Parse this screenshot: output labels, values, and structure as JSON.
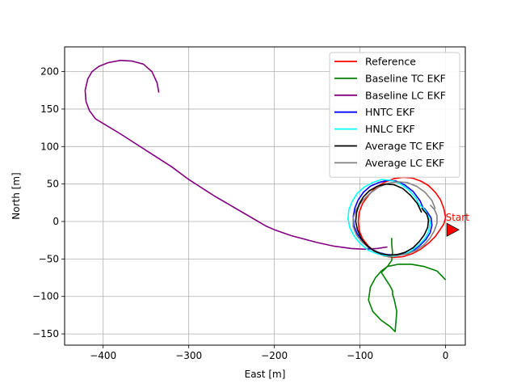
{
  "chart_data": {
    "type": "line",
    "title": "",
    "xlabel": "East [m]",
    "ylabel": "North [m]",
    "xlim": [
      -445,
      23
    ],
    "ylim": [
      -165,
      233
    ],
    "xticks": [
      -400,
      -300,
      -200,
      -100,
      0
    ],
    "yticks": [
      -150,
      -100,
      -50,
      0,
      50,
      100,
      150,
      200
    ],
    "xtick_labels": [
      "−400",
      "−300",
      "−200",
      "−100",
      "0"
    ],
    "ytick_labels": [
      "−150",
      "−100",
      "−50",
      "0",
      "50",
      "100",
      "150",
      "200"
    ],
    "grid": true,
    "legend_position": "top-right",
    "annotation": {
      "text": "Start",
      "x": 0,
      "y": 0,
      "color": "#ff0000"
    },
    "start_marker": {
      "x": 8,
      "y": -11,
      "shape": "triangle-right",
      "color": "#ff0000"
    },
    "series": [
      {
        "name": "Reference",
        "color": "#ff0000",
        "x": [
          0,
          -2,
          -6,
          -12,
          -20,
          -29,
          -39,
          -50,
          -61,
          -72,
          -82,
          -90,
          -97,
          -101,
          -102,
          -101,
          -97,
          -90,
          -82,
          -72,
          -61,
          -50,
          -39,
          -29,
          -20,
          -12,
          -6,
          -2,
          0
        ],
        "y": [
          5,
          17,
          29,
          39,
          48,
          54,
          58,
          59,
          57,
          52,
          45,
          35,
          24,
          12,
          0,
          -12,
          -23,
          -33,
          -41,
          -46,
          -48,
          -47,
          -43,
          -37,
          -29,
          -20,
          -10,
          -3,
          5
        ]
      },
      {
        "name": "Baseline TC EKF",
        "color": "#008000",
        "x": [
          0,
          -10,
          -25,
          -40,
          -55,
          -68,
          -75,
          -70,
          -66,
          -63,
          -62,
          -62,
          -60,
          -57,
          -59,
          -65,
          -75,
          -85,
          -90,
          -88,
          -82,
          -75,
          -68,
          -63,
          -62,
          -63,
          -63
        ],
        "y": [
          -78,
          -66,
          -60,
          -57,
          -57,
          -60,
          -68,
          -77,
          -84,
          -90,
          -93,
          -97,
          -104,
          -120,
          -147,
          -140,
          -132,
          -120,
          -105,
          -88,
          -75,
          -66,
          -60,
          -52,
          -42,
          -30,
          -22
        ]
      },
      {
        "name": "Baseline LC EKF",
        "color": "#800080",
        "x": [
          -335,
          -337,
          -343,
          -353,
          -366,
          -380,
          -394,
          -405,
          -413,
          -418,
          -421,
          -420,
          -416,
          -409,
          -380,
          -350,
          -320,
          -300,
          -270,
          -240,
          -210,
          -200,
          -180,
          -150,
          -130,
          -110,
          -95,
          -80,
          -68
        ],
        "y": [
          172,
          185,
          200,
          210,
          214,
          215,
          212,
          207,
          200,
          190,
          175,
          160,
          148,
          137,
          117,
          95,
          73,
          56,
          34,
          14,
          -6,
          -11,
          -19,
          -28,
          -33,
          -36,
          -37,
          -36,
          -34
        ]
      },
      {
        "name": "HNTC EKF",
        "color": "#0000ff",
        "x": [
          -25,
          -30,
          -38,
          -48,
          -58,
          -68,
          -78,
          -88,
          -96,
          -102,
          -106,
          -108,
          -107,
          -103,
          -97,
          -89,
          -79,
          -69,
          -58,
          -48,
          -38,
          -30,
          -23,
          -18,
          -16,
          -17,
          -21,
          -25
        ],
        "y": [
          15,
          28,
          40,
          49,
          54,
          55,
          52,
          47,
          39,
          29,
          18,
          6,
          -6,
          -17,
          -27,
          -36,
          -41,
          -44,
          -45,
          -43,
          -39,
          -32,
          -24,
          -15,
          -5,
          5,
          12,
          18
        ]
      },
      {
        "name": "HNLC EKF",
        "color": "#00ffff",
        "x": [
          -30,
          -35,
          -44,
          -54,
          -64,
          -75,
          -85,
          -95,
          -103,
          -109,
          -113,
          -114,
          -112,
          -107,
          -100,
          -91,
          -80,
          -70,
          -59,
          -49,
          -40,
          -32,
          -25,
          -20,
          -18,
          -20,
          -24,
          -30
        ],
        "y": [
          20,
          32,
          43,
          51,
          55,
          56,
          52,
          46,
          38,
          27,
          16,
          4,
          -8,
          -19,
          -29,
          -38,
          -43,
          -46,
          -46,
          -44,
          -39,
          -32,
          -24,
          -14,
          -3,
          7,
          15,
          22
        ]
      },
      {
        "name": "Average TC EKF",
        "color": "#000000",
        "x": [
          -28,
          -33,
          -41,
          -50,
          -60,
          -70,
          -80,
          -89,
          -96,
          -101,
          -104,
          -105,
          -103,
          -99,
          -93,
          -85,
          -76,
          -66,
          -56,
          -47,
          -38,
          -31,
          -25,
          -21,
          -20,
          -22,
          -26,
          -28
        ],
        "y": [
          12,
          24,
          35,
          44,
          49,
          50,
          47,
          41,
          33,
          23,
          12,
          0,
          -11,
          -22,
          -31,
          -38,
          -43,
          -45,
          -44,
          -41,
          -35,
          -27,
          -18,
          -8,
          2,
          10,
          15,
          18
        ]
      },
      {
        "name": "Average LC EKF",
        "color": "#808080",
        "x": [
          -12,
          -16,
          -24,
          -34,
          -45,
          -56,
          -67,
          -78,
          -88,
          -97,
          -104,
          -108,
          -108,
          -104,
          -97,
          -88,
          -77,
          -66,
          -55,
          -44,
          -34,
          -25,
          -18,
          -13,
          -10,
          -10,
          -13,
          -18
        ],
        "y": [
          17,
          28,
          39,
          47,
          52,
          53,
          51,
          46,
          38,
          28,
          17,
          5,
          -7,
          -18,
          -28,
          -36,
          -42,
          -45,
          -45,
          -43,
          -38,
          -31,
          -22,
          -12,
          -2,
          8,
          16,
          22
        ]
      }
    ]
  }
}
